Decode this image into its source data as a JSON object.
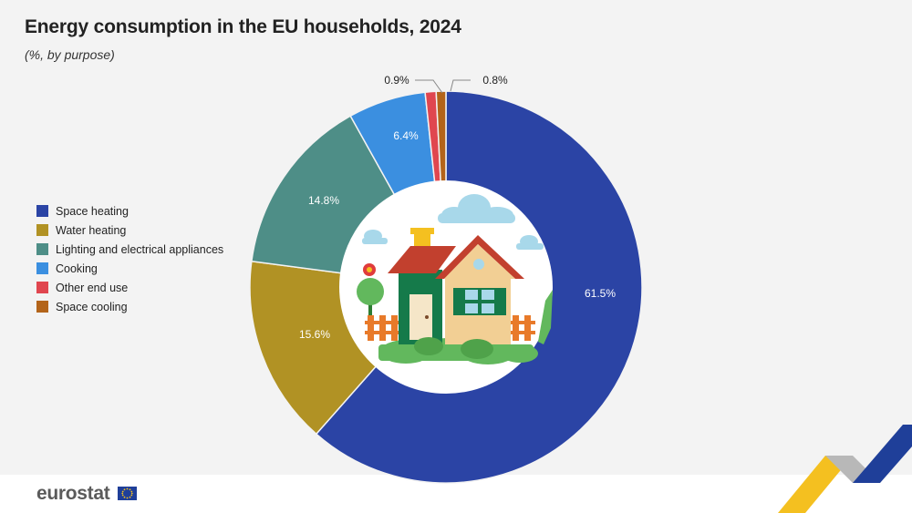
{
  "title": "Energy consumption in the EU households, 2024",
  "subtitle": "(%, by purpose)",
  "logo": "eurostat",
  "chart_data": {
    "type": "pie",
    "variant": "donut",
    "title": "Energy consumption in the EU households, 2024",
    "subtitle": "(%, by purpose)",
    "legend_position": "left",
    "slices": [
      {
        "name": "Space heating",
        "value": 61.5,
        "label": "61.5%",
        "color": "#2b44a5"
      },
      {
        "name": "Water heating",
        "value": 15.6,
        "label": "15.6%",
        "color": "#b19224"
      },
      {
        "name": "Lighting and electrical appliances",
        "value": 14.8,
        "label": "14.8%",
        "color": "#4e8e87"
      },
      {
        "name": "Cooking",
        "value": 6.4,
        "label": "6.4%",
        "color": "#3b8fe0"
      },
      {
        "name": "Other end use",
        "value": 0.9,
        "label": "0.9%",
        "color": "#e0464f"
      },
      {
        "name": "Space cooling",
        "value": 0.8,
        "label": "0.8%",
        "color": "#b3641a"
      }
    ]
  },
  "colors": {
    "background": "#f3f3f3",
    "footer": "#ffffff",
    "center": "#ffffff",
    "eu_flag": "#1f3f99"
  }
}
